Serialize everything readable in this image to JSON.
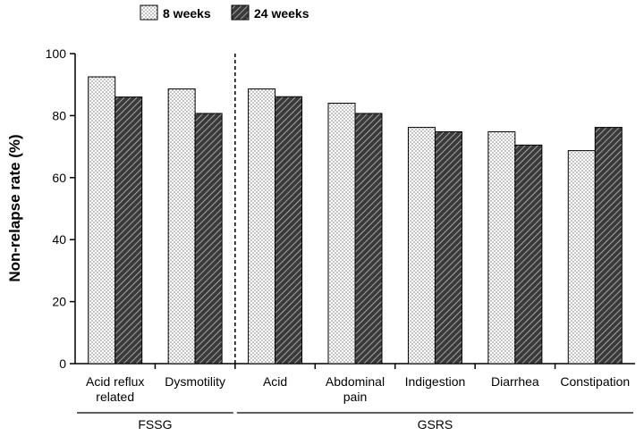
{
  "chart_data": {
    "type": "bar",
    "title": "",
    "xlabel": "",
    "ylabel": "Non-relapse rate (%)",
    "ylim": [
      0,
      100
    ],
    "yticks": [
      0,
      20,
      40,
      60,
      80,
      100
    ],
    "grid": false,
    "legend_position": "top-left",
    "categories": [
      [
        "Acid reflux",
        "related"
      ],
      [
        "Dysmotility"
      ],
      [
        "Acid"
      ],
      [
        "Abdominal",
        "pain"
      ],
      [
        "Indigestion"
      ],
      [
        "Diarrhea"
      ],
      [
        "Constipation"
      ]
    ],
    "series": [
      {
        "name": "8 weeks",
        "pattern": "dots",
        "values": [
          92.5,
          88.6,
          88.6,
          84.0,
          76.2,
          74.8,
          68.7
        ]
      },
      {
        "name": "24 weeks",
        "pattern": "hatch",
        "values": [
          86.0,
          80.7,
          86.1,
          80.7,
          74.8,
          70.5,
          76.2
        ]
      }
    ],
    "groups": [
      {
        "label": "FSSG",
        "start": 0,
        "end": 1
      },
      {
        "label": "GSRS",
        "start": 2,
        "end": 6
      }
    ],
    "divider_after_category": 1
  }
}
